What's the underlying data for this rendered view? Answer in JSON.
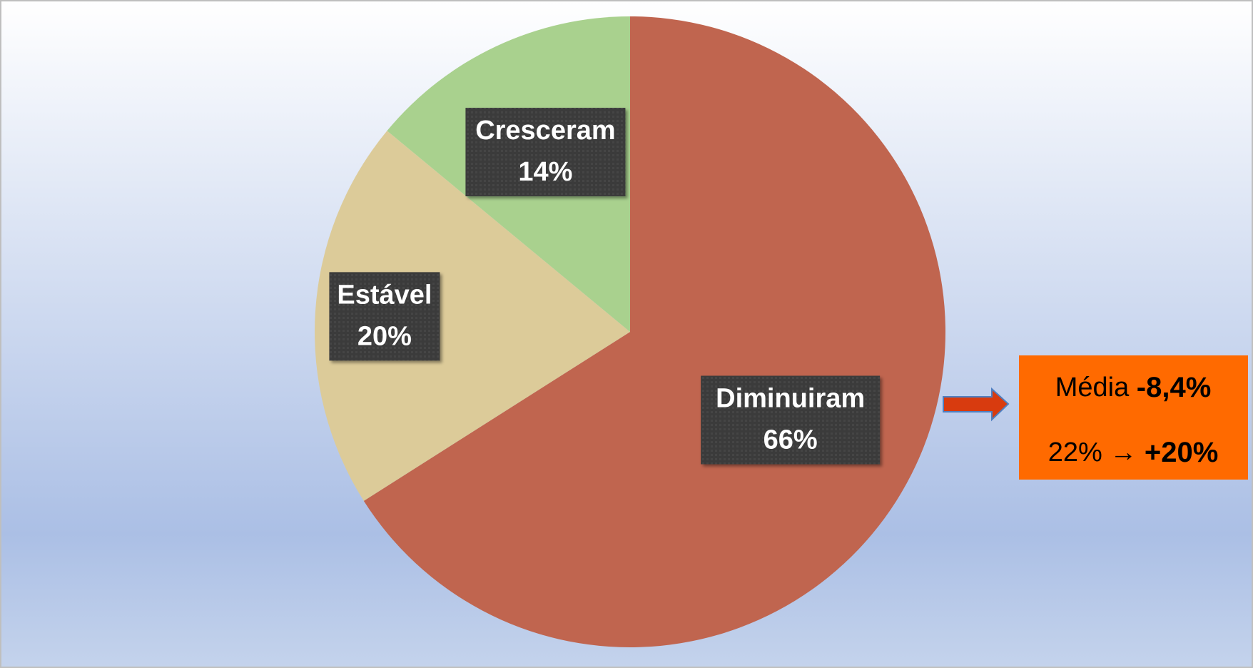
{
  "chart_data": {
    "type": "pie",
    "categories": [
      "Diminuiram",
      "Estável",
      "Cresceram"
    ],
    "values": [
      66,
      20,
      14
    ],
    "value_labels": [
      "66%",
      "20%",
      "14%"
    ],
    "colors": [
      "#c0654f",
      "#dccb99",
      "#a9d18e"
    ],
    "annotations": [
      "Média",
      "-8,4%",
      "22% →",
      "+20%"
    ]
  }
}
